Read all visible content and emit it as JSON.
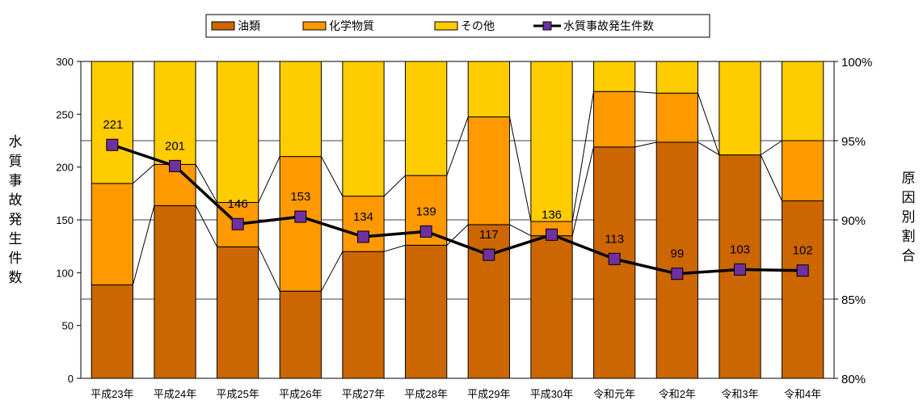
{
  "chart_data": {
    "type": "bar",
    "subtype": "stacked-percent-bar-with-line",
    "categories": [
      "平成23年",
      "平成24年",
      "平成25年",
      "平成26年",
      "平成27年",
      "平成28年",
      "平成29年",
      "平成30年",
      "令和元年",
      "令和2年",
      "令和3年",
      "令和4年"
    ],
    "series": [
      {
        "name": "油類",
        "axis": "right",
        "unit": "%",
        "color": "#CC6600",
        "values": [
          85.9,
          90.9,
          88.3,
          85.5,
          88.0,
          88.4,
          89.7,
          89.0,
          94.6,
          94.9,
          94.1,
          91.2
        ]
      },
      {
        "name": "化学物質",
        "axis": "right",
        "unit": "%",
        "color": "#FF9900",
        "values": [
          6.4,
          2.6,
          2.8,
          8.5,
          3.5,
          4.4,
          6.8,
          0.9,
          3.5,
          3.1,
          0.0,
          3.8
        ]
      },
      {
        "name": "その他",
        "axis": "right",
        "unit": "%",
        "color": "#FFCC00",
        "values": [
          7.7,
          6.5,
          8.9,
          6.0,
          8.5,
          7.2,
          3.5,
          10.1,
          1.9,
          2.0,
          5.9,
          5.0
        ]
      },
      {
        "name": "水質事故発生件数",
        "axis": "left",
        "type": "line",
        "color": "#000000",
        "marker_color": "#7030A0",
        "values": [
          221,
          201,
          146,
          153,
          134,
          139,
          117,
          136,
          113,
          99,
          103,
          102
        ]
      }
    ],
    "left_axis": {
      "label_chars": [
        "水",
        "質",
        "事",
        "故",
        "発",
        "生",
        "件",
        "数"
      ],
      "ylim": [
        0,
        300
      ],
      "ticks": [
        "0",
        "50",
        "100",
        "150",
        "200",
        "250",
        "300"
      ]
    },
    "right_axis": {
      "label_chars": [
        "原",
        "因",
        "別",
        "割",
        "合"
      ],
      "ylim": [
        80,
        100
      ],
      "ticks": [
        "80%",
        "85%",
        "90%",
        "95%",
        "100%"
      ]
    },
    "legend": {
      "placement": "top-center",
      "items": [
        "油類",
        "化学物質",
        "その他",
        "水質事故発生件数"
      ]
    },
    "grid": true
  }
}
